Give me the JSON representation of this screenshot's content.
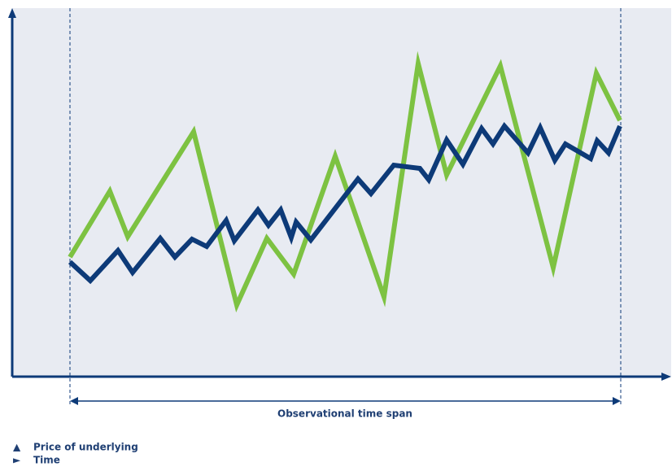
{
  "chart_data": {
    "type": "line",
    "annotation": "Observational time span",
    "observation_window": [
      71,
      748
    ],
    "xlim": [
      0,
      810
    ],
    "ylim": [
      0,
      448
    ],
    "background": "#e8ebf2",
    "axis_color": "#0d3a78",
    "series": [
      {
        "color": "#0d3a78",
        "x": [
          71,
          96,
          130,
          148,
          182,
          200,
          221,
          239,
          263,
          273,
          302,
          315,
          330,
          343,
          349,
          367,
          425,
          441,
          469,
          501,
          512,
          534,
          554,
          577,
          591,
          605,
          634,
          649,
          667,
          680,
          711,
          719,
          733,
          747
        ],
        "values": [
          141,
          118,
          155,
          128,
          170,
          147,
          169,
          160,
          192,
          167,
          205,
          186,
          205,
          171,
          190,
          168,
          243,
          225,
          260,
          256,
          242,
          291,
          261,
          305,
          286,
          308,
          275,
          306,
          266,
          286,
          268,
          290,
          275,
          308
        ]
      },
      {
        "color": "#7dc242",
        "x": [
          71,
          120,
          142,
          223,
          276,
          313,
          346,
          397,
          457,
          499,
          534,
          600,
          665,
          718,
          747
        ],
        "values": [
          147,
          228,
          172,
          301,
          88,
          170,
          126,
          271,
          98,
          385,
          248,
          382,
          134,
          373,
          315
        ]
      }
    ],
    "legend": [
      {
        "symbol": "▲",
        "label": "Price of underlying"
      },
      {
        "symbol": "►",
        "label": "Time"
      }
    ]
  }
}
